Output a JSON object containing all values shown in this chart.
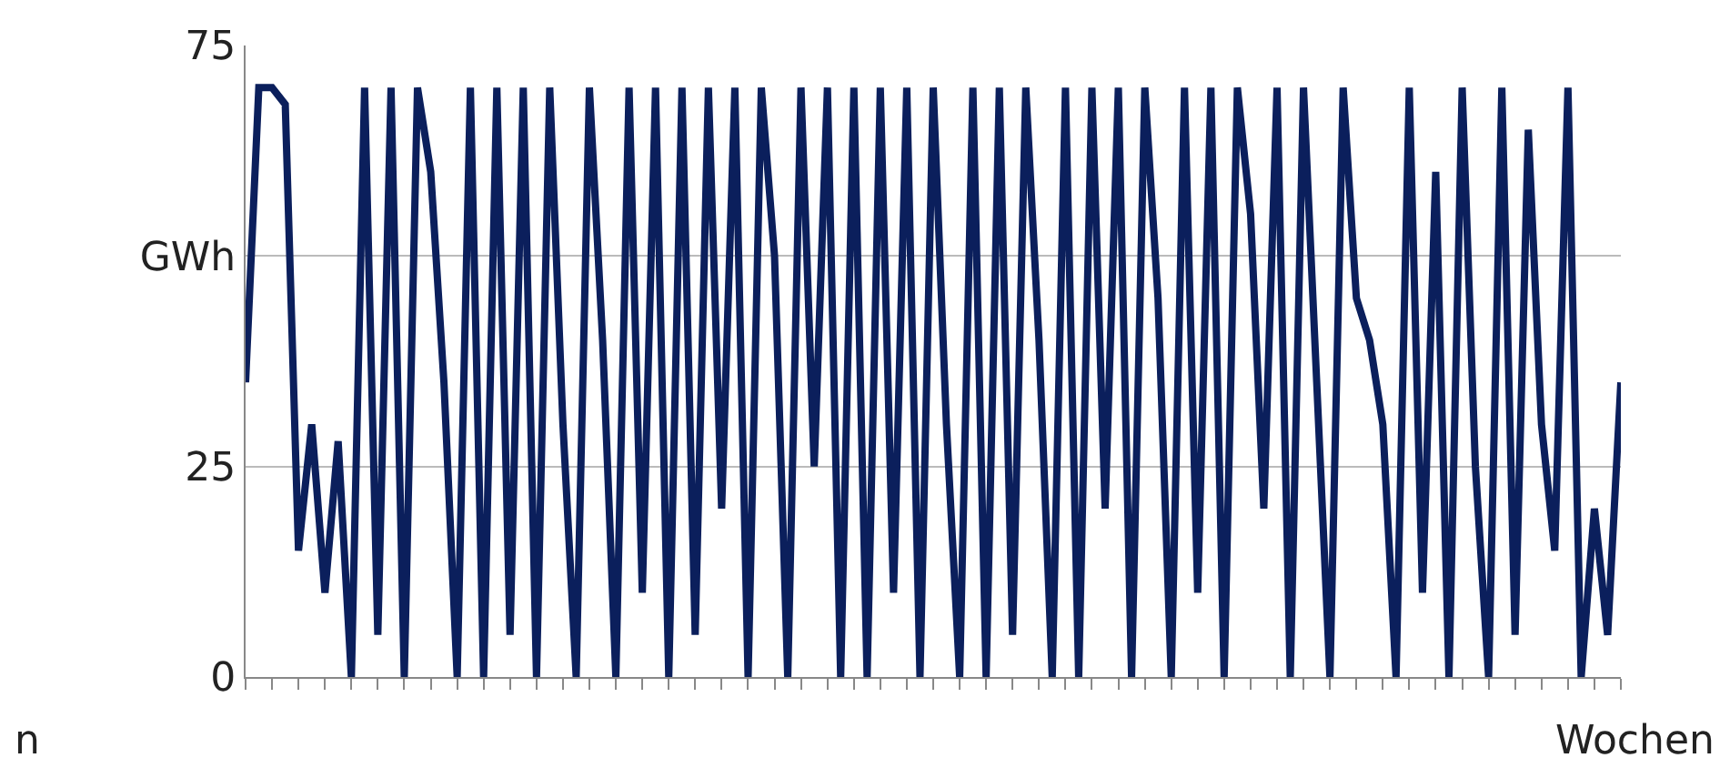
{
  "chart_data": {
    "type": "line",
    "xlabel": "Wochen",
    "annotations": [
      "n"
    ],
    "categories": [
      null,
      null,
      null,
      null,
      null,
      null,
      null,
      null,
      null,
      null,
      null,
      null,
      null,
      null,
      null,
      null,
      null,
      null,
      null,
      null,
      null,
      null,
      null,
      null,
      null,
      null,
      null,
      null,
      null,
      null,
      null,
      null,
      null,
      null,
      null,
      null,
      null,
      null,
      null,
      null,
      null,
      null,
      null,
      null,
      null,
      null,
      null,
      null,
      null,
      null,
      null,
      null,
      null,
      null,
      null,
      null,
      null,
      null,
      null,
      null,
      null,
      null,
      null,
      null,
      null,
      null,
      null,
      null,
      null,
      null,
      null,
      null,
      null,
      null,
      null,
      null,
      null,
      null,
      null,
      null,
      null,
      null,
      null,
      null,
      null,
      null,
      null,
      null,
      null,
      null,
      null,
      null,
      null,
      null,
      null,
      null,
      null,
      null,
      null,
      null,
      null,
      null,
      null,
      null,
      null
    ],
    "series": [
      {
        "color": "#0b1f5c",
        "values": [
          35,
          70,
          70,
          68,
          15,
          30,
          10,
          28,
          0,
          70,
          5,
          70,
          0,
          70,
          60,
          35,
          0,
          70,
          0,
          70,
          5,
          70,
          0,
          70,
          30,
          0,
          70,
          40,
          0,
          70,
          10,
          70,
          0,
          70,
          5,
          70,
          20,
          70,
          0,
          70,
          50,
          0,
          70,
          25,
          70,
          0,
          70,
          0,
          70,
          10,
          70,
          0,
          70,
          30,
          0,
          70,
          0,
          70,
          5,
          70,
          40,
          0,
          70,
          0,
          70,
          20,
          70,
          0,
          70,
          45,
          0,
          70,
          10,
          70,
          0,
          70,
          55,
          20,
          70,
          0,
          70,
          35,
          0,
          70,
          45,
          40,
          30,
          0,
          70,
          10,
          60,
          0,
          70,
          25,
          0,
          70,
          5,
          65,
          30,
          15,
          70,
          0,
          20,
          5,
          35
        ]
      }
    ],
    "ylim": [
      0,
      75
    ],
    "yticks": [
      0,
      25,
      {
        "value": 50,
        "label": "GWh"
      },
      75
    ],
    "tick_labels": "y",
    "grid": "y",
    "marker": "none",
    "line_style": "solid"
  }
}
